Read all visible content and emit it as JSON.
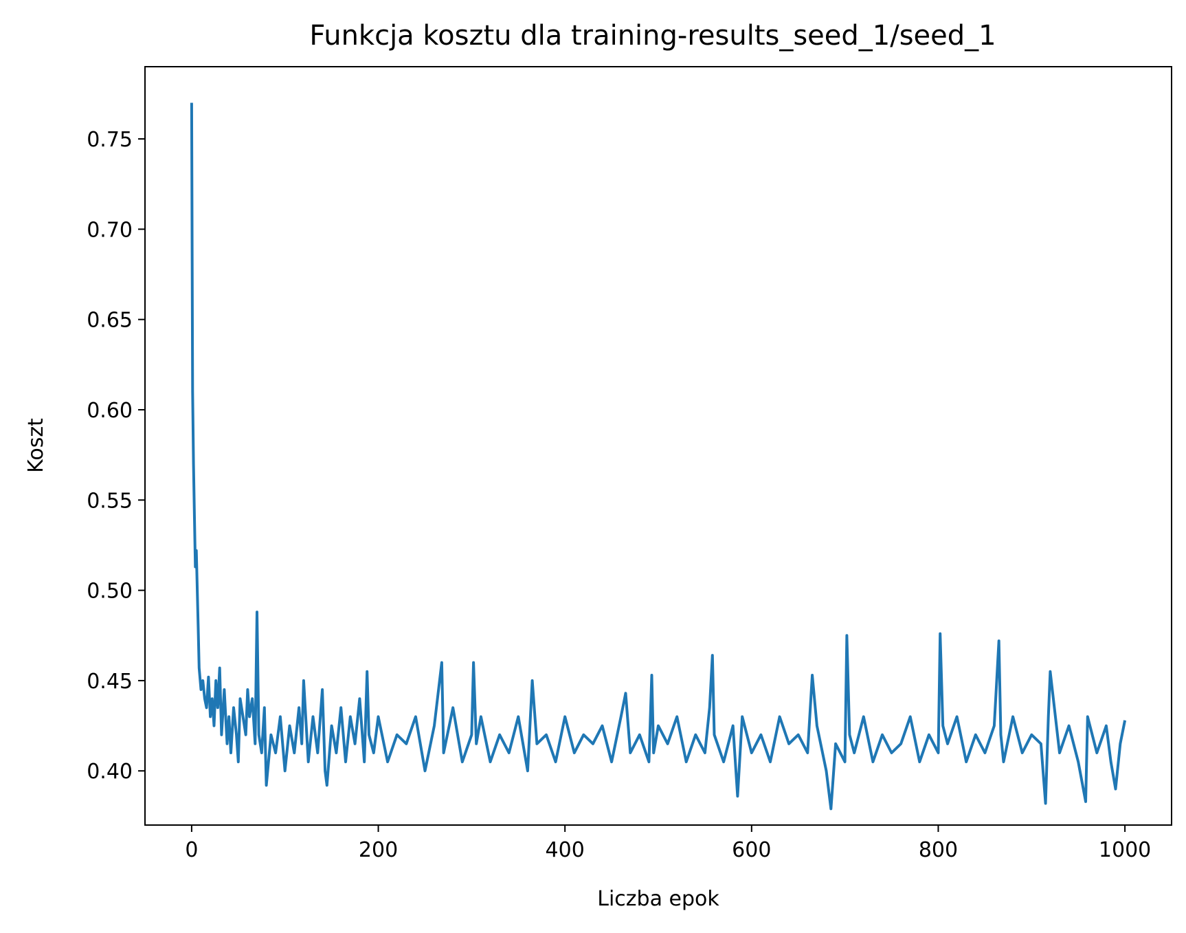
{
  "chart_data": {
    "type": "line",
    "title": "Funkcja kosztu dla training-results_seed_1/seed_1",
    "xlabel": "Liczba epok",
    "ylabel": "Koszt",
    "xlim": [
      -50,
      1050
    ],
    "ylim": [
      0.37,
      0.79
    ],
    "x_ticks": [
      0,
      200,
      400,
      600,
      800,
      1000
    ],
    "y_ticks": [
      0.4,
      0.45,
      0.5,
      0.55,
      0.6,
      0.65,
      0.7,
      0.75
    ],
    "x_tick_labels": [
      "0",
      "200",
      "400",
      "600",
      "800",
      "1000"
    ],
    "y_tick_labels": [
      "0.40",
      "0.45",
      "0.50",
      "0.55",
      "0.60",
      "0.65",
      "0.70",
      "0.75"
    ],
    "grid": false,
    "series": [
      {
        "color": "#1f77b4",
        "x": [
          0,
          1,
          2,
          3,
          4,
          5,
          6,
          7,
          8,
          10,
          12,
          14,
          16,
          18,
          20,
          22,
          24,
          26,
          28,
          30,
          32,
          35,
          38,
          40,
          42,
          45,
          48,
          50,
          52,
          55,
          58,
          60,
          62,
          65,
          68,
          70,
          72,
          75,
          78,
          80,
          85,
          90,
          95,
          100,
          105,
          110,
          115,
          118,
          120,
          125,
          130,
          135,
          140,
          143,
          145,
          150,
          155,
          160,
          165,
          170,
          175,
          180,
          185,
          188,
          190,
          195,
          200,
          210,
          220,
          230,
          240,
          250,
          260,
          268,
          270,
          280,
          290,
          300,
          302,
          305,
          310,
          320,
          330,
          340,
          350,
          360,
          365,
          370,
          380,
          390,
          400,
          410,
          420,
          430,
          440,
          450,
          460,
          465,
          470,
          480,
          490,
          493,
          495,
          500,
          510,
          520,
          530,
          540,
          550,
          555,
          558,
          560,
          570,
          580,
          585,
          590,
          600,
          610,
          620,
          630,
          640,
          650,
          660,
          665,
          670,
          680,
          685,
          690,
          700,
          702,
          705,
          710,
          720,
          730,
          740,
          750,
          760,
          770,
          780,
          790,
          800,
          802,
          805,
          810,
          820,
          830,
          840,
          850,
          860,
          865,
          867,
          870,
          880,
          890,
          900,
          910,
          915,
          918,
          920,
          930,
          940,
          950,
          958,
          960,
          970,
          980,
          985,
          990,
          995,
          1000
        ],
        "y": [
          0.77,
          0.61,
          0.57,
          0.54,
          0.513,
          0.522,
          0.5,
          0.48,
          0.457,
          0.445,
          0.45,
          0.44,
          0.435,
          0.452,
          0.43,
          0.44,
          0.425,
          0.45,
          0.435,
          0.457,
          0.42,
          0.445,
          0.415,
          0.43,
          0.41,
          0.435,
          0.42,
          0.405,
          0.44,
          0.43,
          0.42,
          0.445,
          0.43,
          0.44,
          0.415,
          0.488,
          0.42,
          0.41,
          0.435,
          0.392,
          0.42,
          0.41,
          0.43,
          0.4,
          0.425,
          0.41,
          0.435,
          0.415,
          0.45,
          0.405,
          0.43,
          0.41,
          0.445,
          0.4,
          0.392,
          0.425,
          0.41,
          0.435,
          0.405,
          0.43,
          0.415,
          0.44,
          0.405,
          0.455,
          0.42,
          0.41,
          0.43,
          0.405,
          0.42,
          0.415,
          0.43,
          0.4,
          0.425,
          0.46,
          0.41,
          0.435,
          0.405,
          0.42,
          0.46,
          0.415,
          0.43,
          0.405,
          0.42,
          0.41,
          0.43,
          0.4,
          0.45,
          0.415,
          0.42,
          0.405,
          0.43,
          0.41,
          0.42,
          0.415,
          0.425,
          0.405,
          0.43,
          0.443,
          0.41,
          0.42,
          0.405,
          0.453,
          0.41,
          0.425,
          0.415,
          0.43,
          0.405,
          0.42,
          0.41,
          0.435,
          0.464,
          0.42,
          0.405,
          0.425,
          0.386,
          0.43,
          0.41,
          0.42,
          0.405,
          0.43,
          0.415,
          0.42,
          0.41,
          0.453,
          0.425,
          0.4,
          0.379,
          0.415,
          0.405,
          0.475,
          0.42,
          0.41,
          0.43,
          0.405,
          0.42,
          0.41,
          0.415,
          0.43,
          0.405,
          0.42,
          0.41,
          0.476,
          0.425,
          0.415,
          0.43,
          0.405,
          0.42,
          0.41,
          0.425,
          0.472,
          0.42,
          0.405,
          0.43,
          0.41,
          0.42,
          0.415,
          0.382,
          0.43,
          0.455,
          0.41,
          0.425,
          0.405,
          0.383,
          0.43,
          0.41,
          0.425,
          0.405,
          0.39,
          0.415,
          0.428
        ]
      }
    ]
  }
}
